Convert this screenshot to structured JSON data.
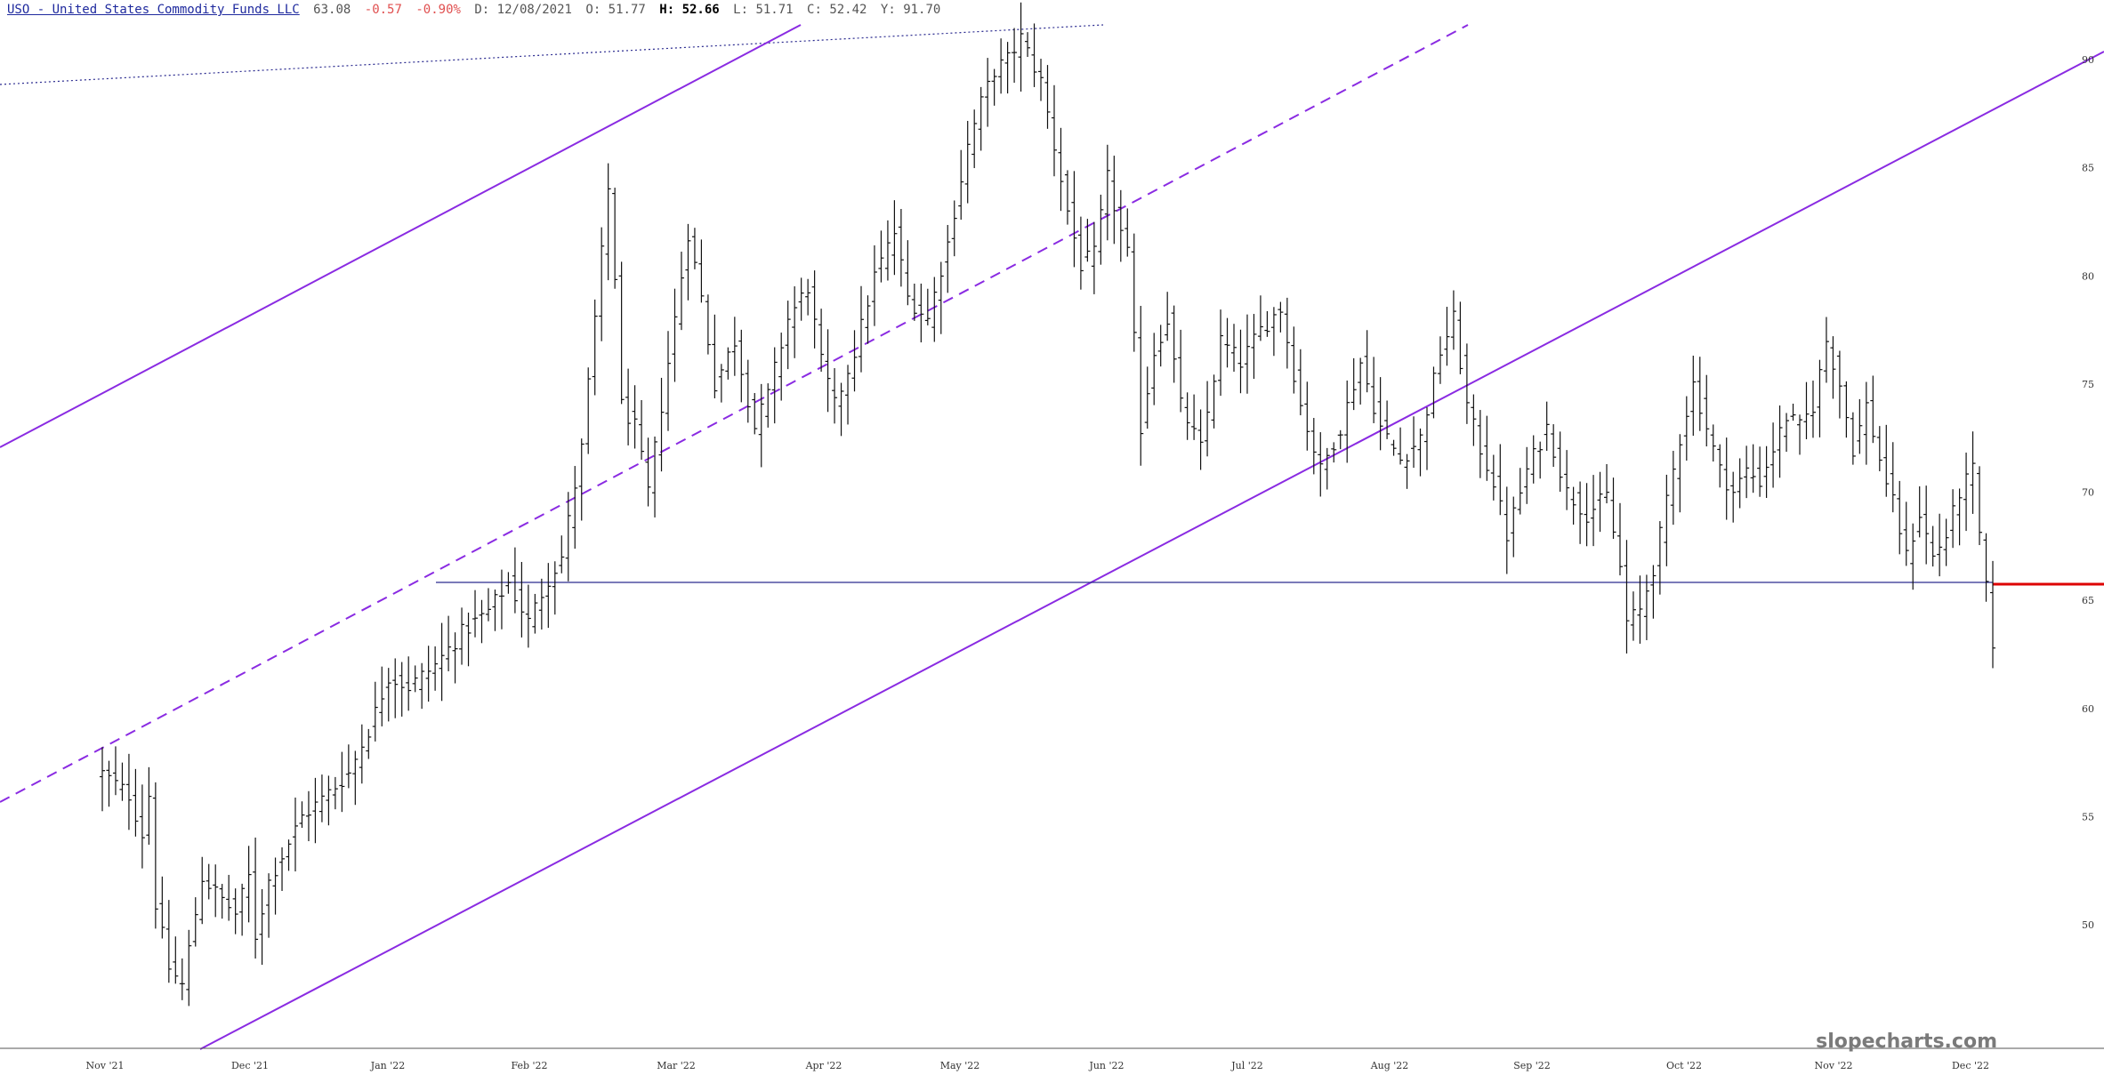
{
  "header": {
    "ticker": "USO - United States Commodity Funds LLC",
    "last": "63.08",
    "change": "-0.57",
    "change_pct": "-0.90%",
    "date": "D: 12/08/2021",
    "open": "O: 51.77",
    "high_label": "H:",
    "high_value": "52.66",
    "low": "L: 51.71",
    "close": "C: 52.42",
    "y_value": "Y: 91.70"
  },
  "watermark": "slopecharts.com",
  "chart_data": {
    "type": "ohlc",
    "y_ticks": [
      90,
      85,
      80,
      75,
      70,
      65,
      60,
      55,
      50
    ],
    "ylim": [
      46.5,
      92.5
    ],
    "x_ticks": [
      "Nov '21",
      "Dec '21",
      "Jan '22",
      "Feb '22",
      "Mar '22",
      "Apr '22",
      "May '22",
      "Jun '22",
      "Jul '22",
      "Aug '22",
      "Sep '22",
      "Oct '22",
      "Nov '22",
      "Dec '22"
    ],
    "colors": {
      "bars": "#111111",
      "trendline": "#8a2be2",
      "support": "#2a2a8f",
      "current": "#dd0000"
    },
    "support_level": 63.1,
    "current_level": 63.08,
    "anchors": [
      [
        0,
        57.0
      ],
      [
        4,
        56.0
      ],
      [
        6,
        54.2
      ],
      [
        7,
        56.0
      ],
      [
        8,
        51.0
      ],
      [
        10,
        48.0
      ],
      [
        12,
        47.2
      ],
      [
        15,
        52.2
      ],
      [
        17,
        51.5
      ],
      [
        20,
        50.5
      ],
      [
        22,
        52.2
      ],
      [
        23,
        49.5
      ],
      [
        25,
        52.0
      ],
      [
        30,
        55.0
      ],
      [
        33,
        55.8
      ],
      [
        37,
        57.0
      ],
      [
        40,
        59.0
      ],
      [
        43,
        61.5
      ],
      [
        46,
        61.0
      ],
      [
        50,
        62.0
      ],
      [
        54,
        63.5
      ],
      [
        58,
        64.5
      ],
      [
        61,
        65.8
      ],
      [
        64,
        64.0
      ],
      [
        67,
        66.0
      ],
      [
        69,
        67.0
      ],
      [
        72,
        72.0
      ],
      [
        74,
        78.0
      ],
      [
        76,
        84.0
      ],
      [
        77,
        80.0
      ],
      [
        78,
        74.0
      ],
      [
        80,
        73.0
      ],
      [
        82,
        70.0
      ],
      [
        84,
        74.0
      ],
      [
        86,
        78.0
      ],
      [
        88,
        82.0
      ],
      [
        90,
        79.0
      ],
      [
        92,
        75.0
      ],
      [
        95,
        77.0
      ],
      [
        98,
        73.0
      ],
      [
        100,
        74.5
      ],
      [
        103,
        78.0
      ],
      [
        106,
        79.5
      ],
      [
        108,
        76.0
      ],
      [
        110,
        74.0
      ],
      [
        113,
        76.5
      ],
      [
        116,
        80.0
      ],
      [
        119,
        82.0
      ],
      [
        121,
        79.0
      ],
      [
        124,
        78.0
      ],
      [
        127,
        81.5
      ],
      [
        130,
        86.0
      ],
      [
        132,
        88.0
      ],
      [
        134,
        89.5
      ],
      [
        136,
        90.0
      ],
      [
        138,
        91.0
      ],
      [
        141,
        89.0
      ],
      [
        143,
        86.0
      ],
      [
        145,
        83.0
      ],
      [
        147,
        80.5
      ],
      [
        149,
        81.0
      ],
      [
        151,
        84.5
      ],
      [
        153,
        82.0
      ],
      [
        154,
        81.0
      ],
      [
        155,
        77.0
      ],
      [
        156,
        73.0
      ],
      [
        158,
        76.5
      ],
      [
        160,
        78.0
      ],
      [
        162,
        74.0
      ],
      [
        165,
        72.0
      ],
      [
        168,
        77.0
      ],
      [
        171,
        76.0
      ],
      [
        174,
        77.5
      ],
      [
        177,
        78.5
      ],
      [
        180,
        74.0
      ],
      [
        183,
        71.0
      ],
      [
        186,
        73.0
      ],
      [
        189,
        76.0
      ],
      [
        192,
        73.0
      ],
      [
        195,
        71.5
      ],
      [
        198,
        72.5
      ],
      [
        201,
        76.5
      ],
      [
        203,
        78.0
      ],
      [
        205,
        74.0
      ],
      [
        207,
        72.0
      ],
      [
        209,
        70.5
      ],
      [
        211,
        68.0
      ],
      [
        214,
        71.0
      ],
      [
        217,
        73.0
      ],
      [
        220,
        70.0
      ],
      [
        223,
        69.0
      ],
      [
        226,
        69.8
      ],
      [
        228,
        66.5
      ],
      [
        229,
        64.0
      ],
      [
        231,
        64.5
      ],
      [
        233,
        66.5
      ],
      [
        235,
        69.5
      ],
      [
        237,
        72.5
      ],
      [
        239,
        75.0
      ],
      [
        241,
        73.0
      ],
      [
        243,
        71.0
      ],
      [
        245,
        70.0
      ],
      [
        247,
        71.0
      ],
      [
        249,
        70.5
      ],
      [
        251,
        72.0
      ],
      [
        253,
        73.5
      ],
      [
        255,
        73.0
      ],
      [
        257,
        74.0
      ],
      [
        259,
        77.0
      ],
      [
        261,
        75.0
      ],
      [
        263,
        72.0
      ],
      [
        265,
        74.0
      ],
      [
        267,
        71.5
      ],
      [
        269,
        69.5
      ],
      [
        271,
        67.0
      ],
      [
        273,
        69.0
      ],
      [
        275,
        67.0
      ],
      [
        277,
        68.0
      ],
      [
        279,
        70.0
      ],
      [
        281,
        71.0
      ],
      [
        282,
        68.0
      ],
      [
        283,
        65.5
      ],
      [
        284,
        63.08
      ]
    ]
  }
}
